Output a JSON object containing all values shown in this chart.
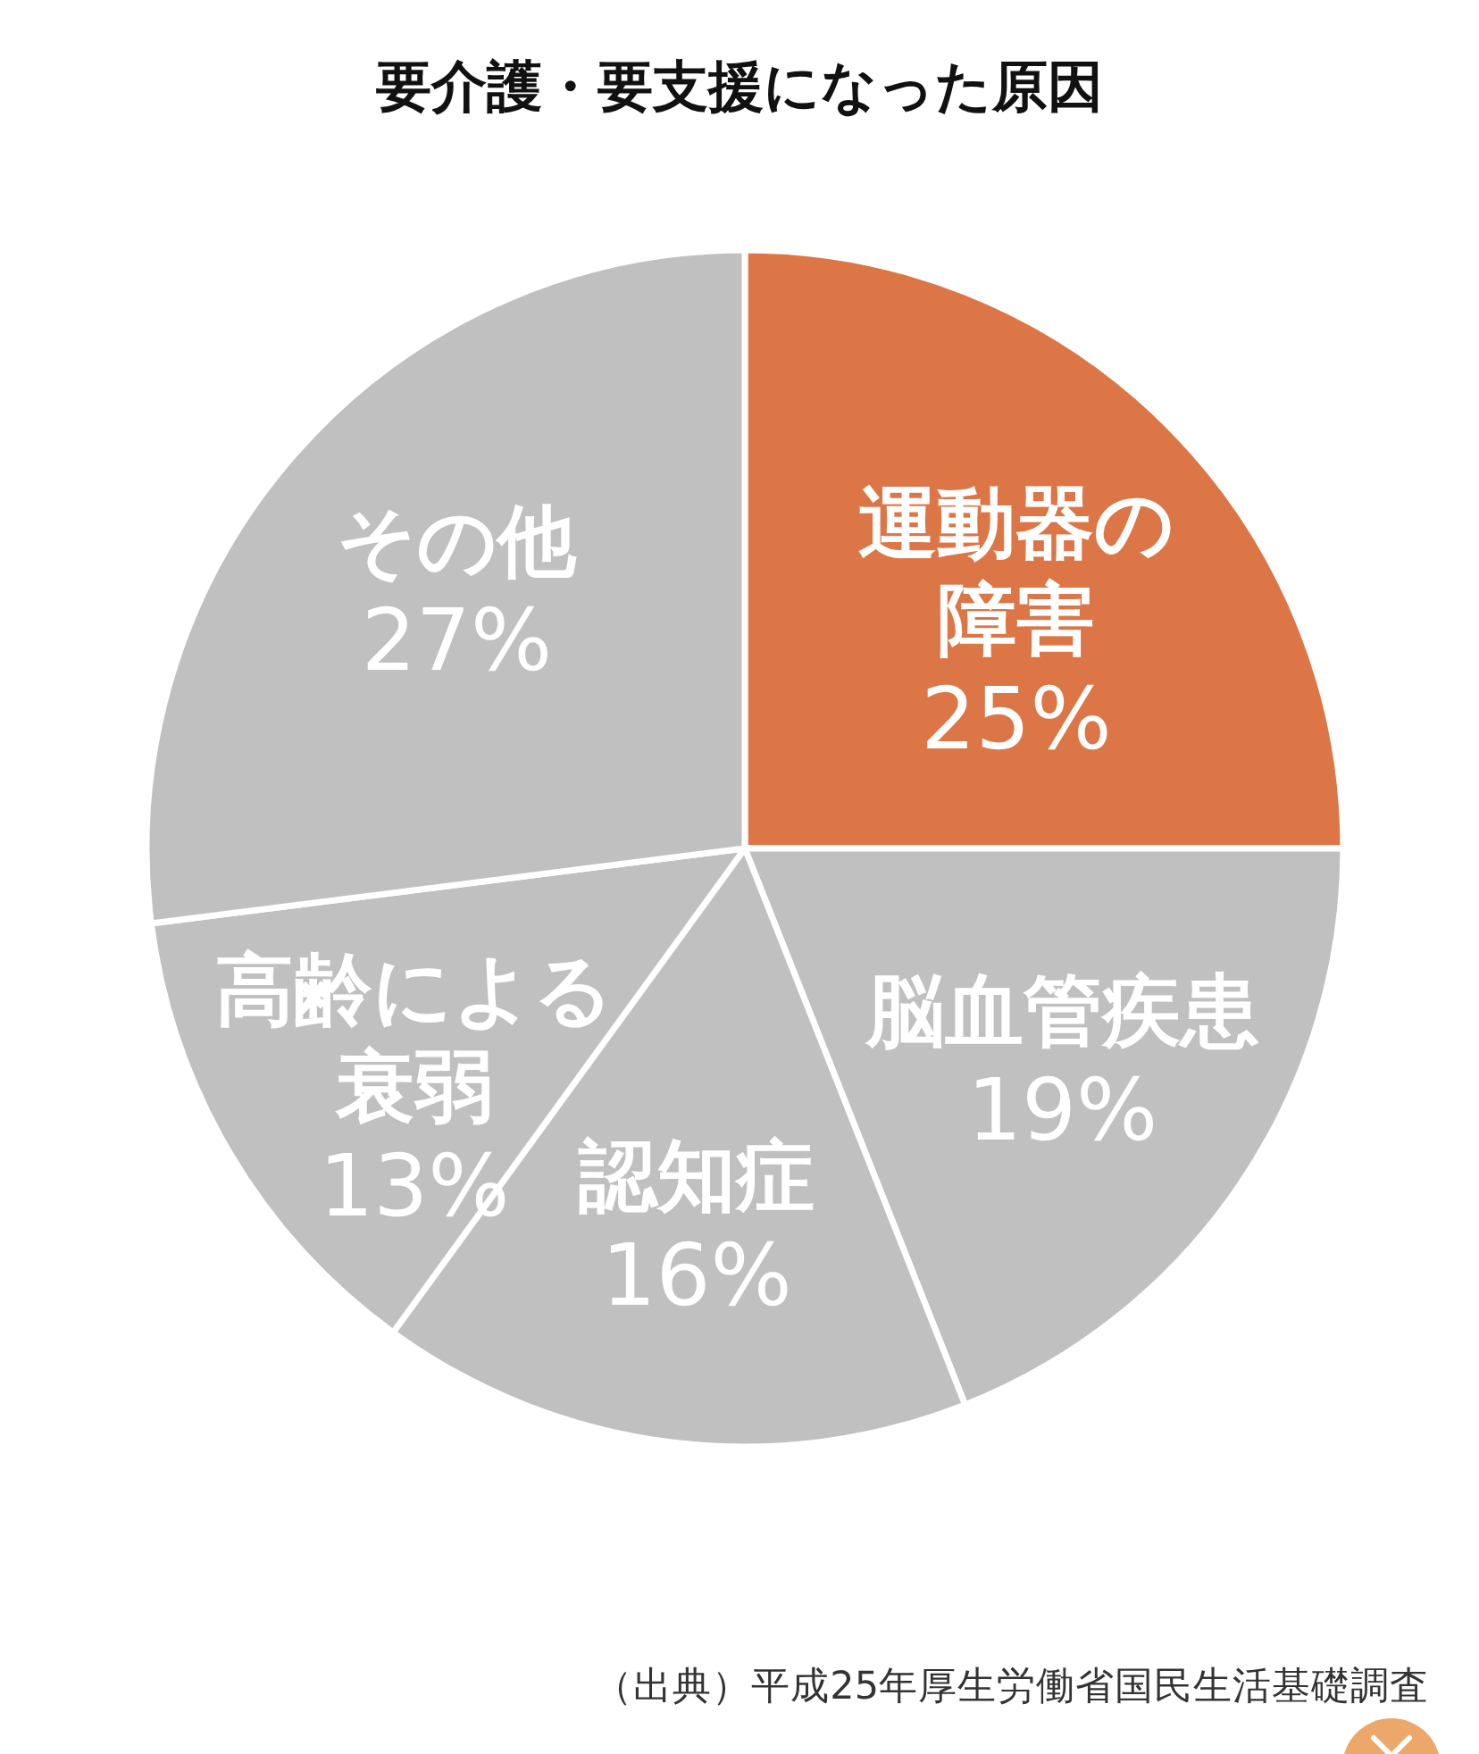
{
  "chart_data": {
    "type": "pie",
    "title": "要介護・要支援になった原因",
    "categories": [
      "運動器の障害",
      "脳血管疾患",
      "認知症",
      "高齢による衰弱",
      "その他"
    ],
    "values": [
      25,
      19,
      16,
      13,
      27
    ],
    "colors": [
      "#dc7646",
      "#c0c0c0",
      "#c0c0c0",
      "#c0c0c0",
      "#c0c0c0"
    ],
    "value_labels": [
      "25%",
      "19%",
      "16%",
      "13%",
      "27%"
    ],
    "annotations": [
      "（出典）平成25年厚生労働省国民生活基礎調査"
    ]
  }
}
